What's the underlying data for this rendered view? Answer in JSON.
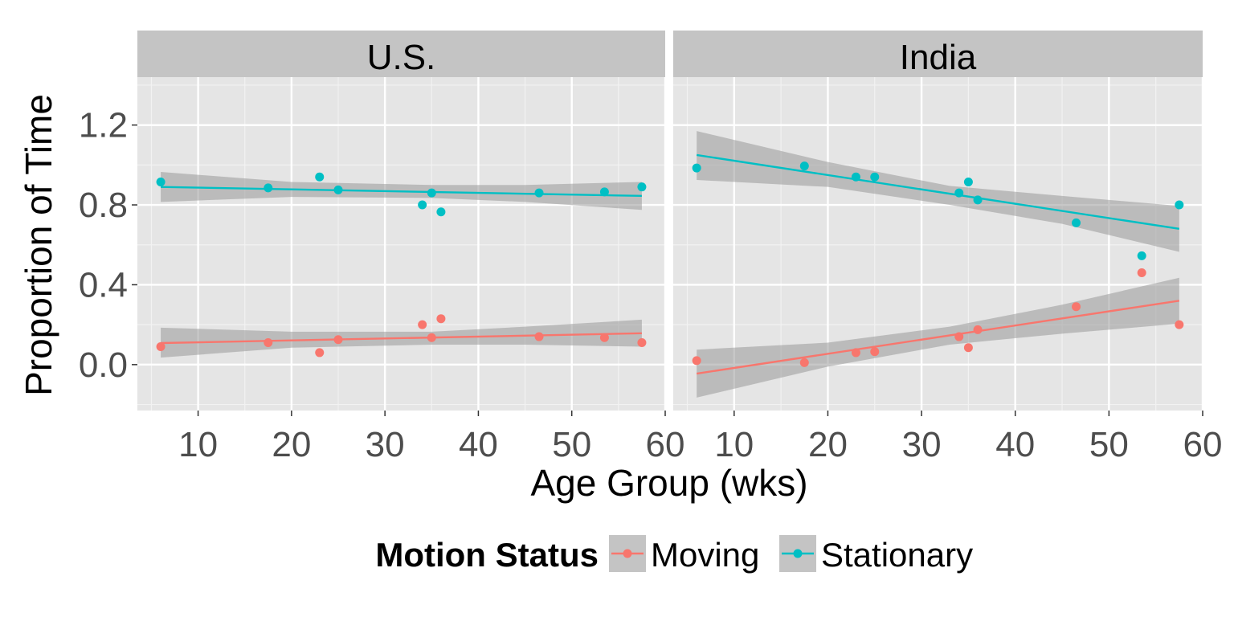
{
  "chart_data": {
    "type": "scatter",
    "xlabel": "Age Group (wks)",
    "ylabel": "Proportion of Time",
    "xlim": [
      3.5,
      60
    ],
    "ylim": [
      -0.23,
      1.44
    ],
    "x_ticks": [
      10,
      20,
      30,
      40,
      50,
      60
    ],
    "y_ticks": [
      0.0,
      0.4,
      0.8,
      1.2
    ],
    "y_tick_labels": [
      "0.0",
      "0.4",
      "0.8",
      "1.2"
    ],
    "grid": true,
    "legend": {
      "title": "Motion Status",
      "position": "bottom",
      "entries": [
        "Moving",
        "Stationary"
      ]
    },
    "colors": {
      "Moving": "#F8766D",
      "Stationary": "#00BFC4",
      "panel_bg": "#E5E5E5",
      "strip_bg": "#C4C4C4",
      "ribbon": "#999999"
    },
    "panels": [
      {
        "name": "U.S.",
        "series": [
          {
            "name": "Moving",
            "points": [
              [
                6,
                0.09
              ],
              [
                17.5,
                0.11
              ],
              [
                23,
                0.06
              ],
              [
                25,
                0.125
              ],
              [
                34,
                0.2
              ],
              [
                35,
                0.135
              ],
              [
                36,
                0.23
              ],
              [
                46.5,
                0.14
              ],
              [
                53.5,
                0.135
              ],
              [
                57.5,
                0.11
              ]
            ],
            "fit": [
              [
                6,
                0.108
              ],
              [
                57.5,
                0.157
              ]
            ],
            "ribbon": [
              [
                6,
                0.035,
                0.185
              ],
              [
                20,
                0.085,
                0.165
              ],
              [
                35,
                0.1,
                0.165
              ],
              [
                45,
                0.1,
                0.19
              ],
              [
                57.5,
                0.09,
                0.225
              ]
            ]
          },
          {
            "name": "Stationary",
            "points": [
              [
                6,
                0.915
              ],
              [
                17.5,
                0.885
              ],
              [
                23,
                0.94
              ],
              [
                25,
                0.875
              ],
              [
                34,
                0.8
              ],
              [
                35,
                0.86
              ],
              [
                36,
                0.765
              ],
              [
                46.5,
                0.86
              ],
              [
                53.5,
                0.865
              ],
              [
                57.5,
                0.89
              ]
            ],
            "fit": [
              [
                6,
                0.89
              ],
              [
                57.5,
                0.845
              ]
            ],
            "ribbon": [
              [
                6,
                0.815,
                0.965
              ],
              [
                20,
                0.84,
                0.915
              ],
              [
                35,
                0.835,
                0.9
              ],
              [
                45,
                0.815,
                0.9
              ],
              [
                57.5,
                0.775,
                0.915
              ]
            ]
          }
        ]
      },
      {
        "name": "India",
        "series": [
          {
            "name": "Moving",
            "points": [
              [
                6,
                0.02
              ],
              [
                17.5,
                0.01
              ],
              [
                23,
                0.06
              ],
              [
                25,
                0.065
              ],
              [
                34,
                0.14
              ],
              [
                35,
                0.085
              ],
              [
                36,
                0.175
              ],
              [
                46.5,
                0.29
              ],
              [
                53.5,
                0.46
              ],
              [
                57.5,
                0.2
              ]
            ],
            "fit": [
              [
                6,
                -0.045
              ],
              [
                57.5,
                0.32
              ]
            ],
            "ribbon": [
              [
                6,
                -0.165,
                0.075
              ],
              [
                20,
                -0.01,
                0.11
              ],
              [
                33,
                0.1,
                0.19
              ],
              [
                45,
                0.155,
                0.3
              ],
              [
                57.5,
                0.205,
                0.435
              ]
            ]
          },
          {
            "name": "Stationary",
            "points": [
              [
                6,
                0.985
              ],
              [
                17.5,
                0.995
              ],
              [
                23,
                0.94
              ],
              [
                25,
                0.94
              ],
              [
                34,
                0.86
              ],
              [
                35,
                0.915
              ],
              [
                36,
                0.825
              ],
              [
                46.5,
                0.71
              ],
              [
                53.5,
                0.545
              ],
              [
                57.5,
                0.8
              ]
            ],
            "fit": [
              [
                6,
                1.05
              ],
              [
                57.5,
                0.68
              ]
            ],
            "ribbon": [
              [
                6,
                0.925,
                1.17
              ],
              [
                20,
                0.89,
                1.015
              ],
              [
                33,
                0.8,
                0.895
              ],
              [
                45,
                0.705,
                0.845
              ],
              [
                57.5,
                0.565,
                0.795
              ]
            ]
          }
        ]
      }
    ]
  }
}
